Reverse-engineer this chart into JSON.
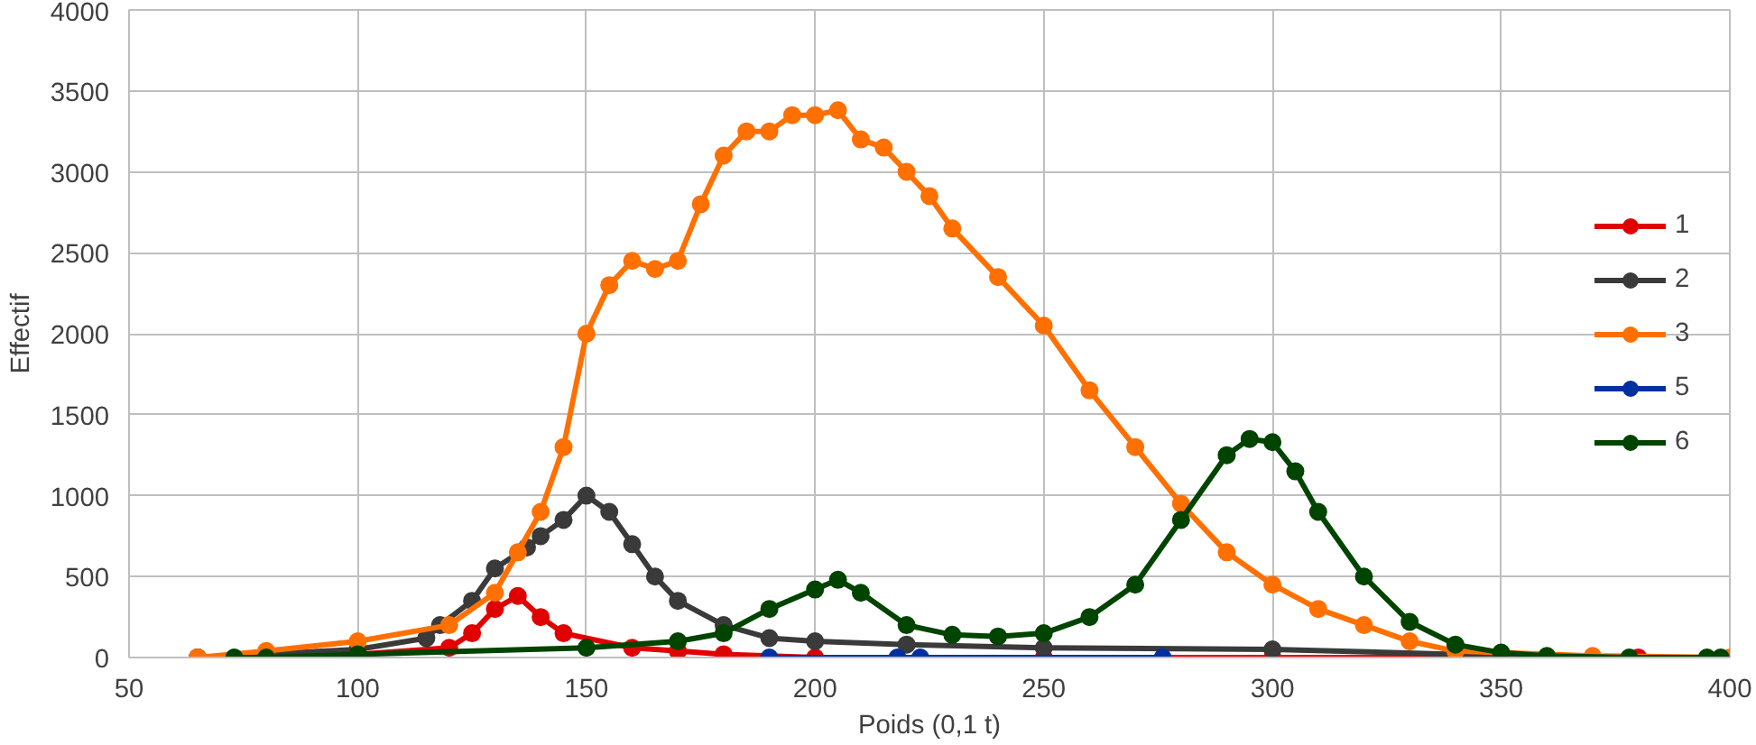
{
  "chart_data": {
    "type": "line",
    "xlabel": "Poids (0,1 t)",
    "ylabel": "Effectif",
    "xlim": [
      50,
      400
    ],
    "ylim": [
      0,
      4000
    ],
    "xticks": [
      50,
      100,
      150,
      200,
      250,
      300,
      350,
      400
    ],
    "yticks": [
      0,
      500,
      1000,
      1500,
      2000,
      2500,
      3000,
      3500,
      4000
    ],
    "grid": true,
    "legend": "right",
    "marker": "circle",
    "line_style": "solid",
    "series": [
      {
        "name": "1",
        "color": "#e00000",
        "x": [
          65,
          100,
          120,
          125,
          130,
          135,
          140,
          145,
          160,
          170,
          180,
          200,
          250,
          300,
          350,
          380
        ],
        "values": [
          0,
          20,
          60,
          150,
          300,
          380,
          250,
          150,
          60,
          40,
          20,
          0,
          0,
          0,
          0,
          0
        ]
      },
      {
        "name": "2",
        "color": "#3a3a3a",
        "x": [
          65,
          100,
          115,
          118,
          125,
          130,
          137,
          140,
          145,
          150,
          155,
          160,
          165,
          170,
          180,
          190,
          200,
          220,
          250,
          300,
          340,
          360
        ],
        "values": [
          0,
          50,
          120,
          200,
          350,
          550,
          680,
          750,
          850,
          1000,
          900,
          700,
          500,
          350,
          200,
          120,
          100,
          80,
          60,
          50,
          20,
          0
        ]
      },
      {
        "name": "3",
        "color": "#ff7000",
        "x": [
          65,
          80,
          100,
          120,
          130,
          135,
          140,
          145,
          150,
          155,
          160,
          165,
          170,
          175,
          180,
          185,
          190,
          195,
          200,
          205,
          210,
          215,
          220,
          225,
          230,
          240,
          250,
          260,
          270,
          280,
          290,
          300,
          310,
          320,
          330,
          340,
          370,
          400
        ],
        "values": [
          0,
          40,
          100,
          200,
          400,
          650,
          900,
          1300,
          2000,
          2300,
          2450,
          2400,
          2450,
          2800,
          3100,
          3250,
          3250,
          3350,
          3350,
          3380,
          3200,
          3150,
          3000,
          2850,
          2650,
          2350,
          2050,
          1650,
          1300,
          950,
          650,
          450,
          300,
          200,
          100,
          40,
          10,
          0
        ]
      },
      {
        "name": "5",
        "color": "#0030a0",
        "x": [
          190,
          218,
          223,
          276
        ],
        "values": [
          0,
          0,
          0,
          0
        ]
      },
      {
        "name": "6",
        "color": "#004400",
        "x": [
          73,
          80,
          100,
          150,
          170,
          180,
          190,
          200,
          205,
          210,
          220,
          230,
          240,
          250,
          260,
          270,
          280,
          290,
          295,
          300,
          305,
          310,
          320,
          330,
          340,
          350,
          360,
          378,
          395,
          398
        ],
        "values": [
          0,
          0,
          20,
          60,
          100,
          150,
          300,
          420,
          480,
          400,
          200,
          140,
          130,
          150,
          250,
          450,
          850,
          1250,
          1350,
          1330,
          1150,
          900,
          500,
          220,
          80,
          30,
          10,
          0,
          0,
          0
        ]
      }
    ]
  }
}
